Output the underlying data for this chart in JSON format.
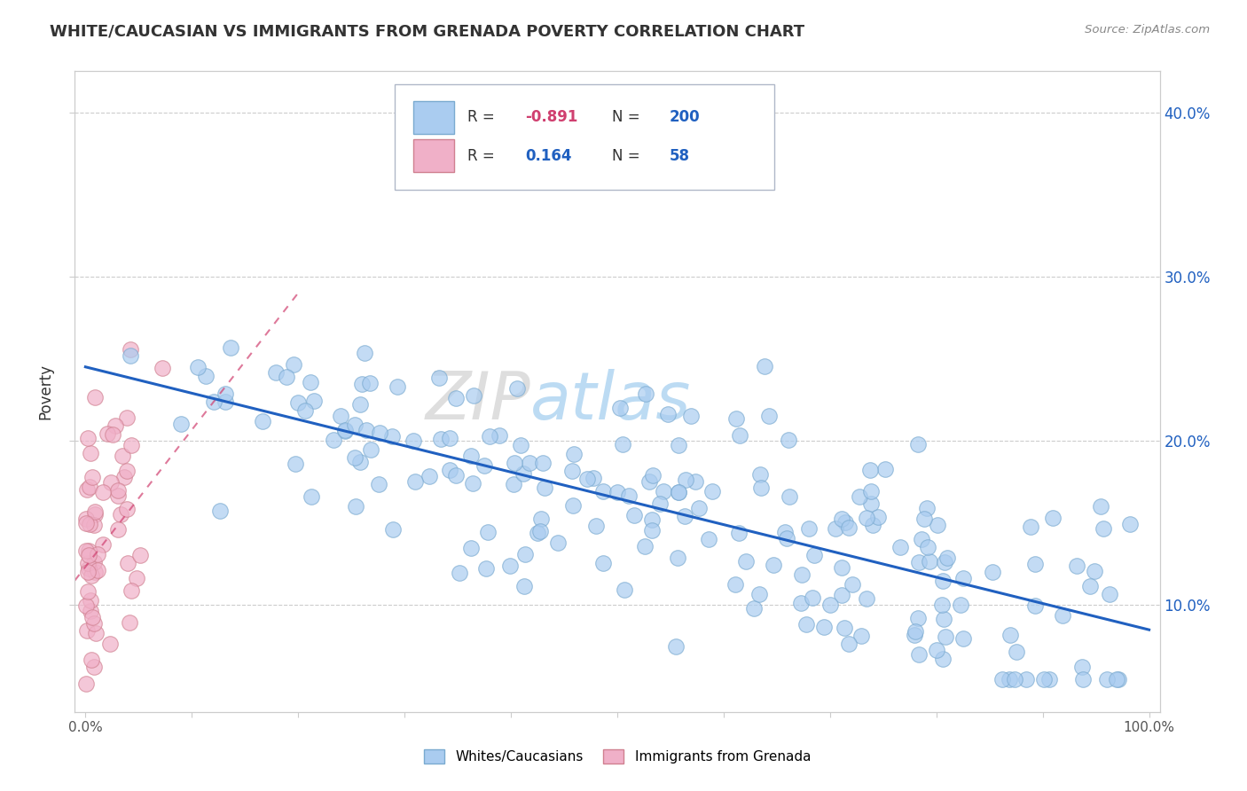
{
  "title": "WHITE/CAUCASIAN VS IMMIGRANTS FROM GRENADA POVERTY CORRELATION CHART",
  "source_text": "Source: ZipAtlas.com",
  "ylabel": "Poverty",
  "watermark_left": "ZIP",
  "watermark_right": "atlas",
  "xmin": 0.0,
  "xmax": 1.0,
  "ymin": 0.035,
  "ymax": 0.425,
  "blue_R": -0.891,
  "blue_N": 200,
  "pink_R": 0.164,
  "pink_N": 58,
  "blue_color": "#aaccf0",
  "blue_edge": "#7aaad0",
  "pink_color": "#f0b0c8",
  "pink_edge": "#d08090",
  "blue_line_color": "#2060c0",
  "pink_line_color": "#d04070",
  "title_color": "#333333",
  "grid_color": "#cccccc",
  "right_ytick_labels": [
    "10.0%",
    "20.0%",
    "30.0%",
    "40.0%"
  ],
  "right_ytick_values": [
    0.1,
    0.2,
    0.3,
    0.4
  ],
  "xtick_labels_show": [
    "0.0%",
    "100.0%"
  ],
  "xtick_values": [
    0.0,
    0.1,
    0.2,
    0.3,
    0.4,
    0.5,
    0.6,
    0.7,
    0.8,
    0.9,
    1.0
  ],
  "blue_line_x": [
    0.0,
    1.0
  ],
  "blue_line_y": [
    0.245,
    0.085
  ],
  "pink_line_x": [
    -0.01,
    0.2
  ],
  "pink_line_y": [
    0.115,
    0.29
  ]
}
